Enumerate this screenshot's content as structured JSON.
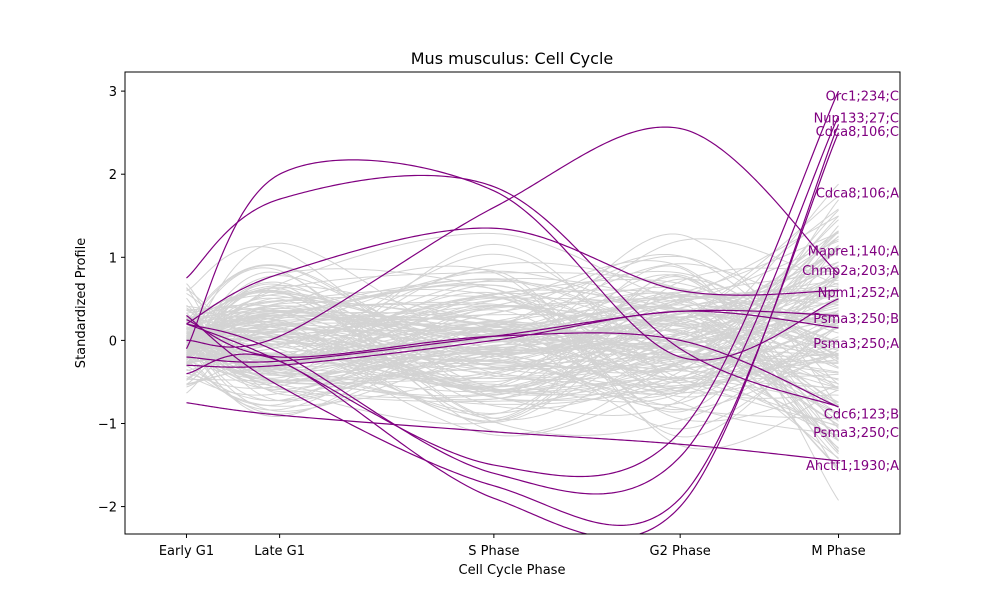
{
  "chart_data": {
    "type": "line",
    "title": "Mus musculus: Cell Cycle",
    "xlabel": "Cell Cycle Phase",
    "ylabel": "Standardized Profile",
    "categories": [
      "Early G1",
      "Late G1",
      "S Phase",
      "G2 Phase",
      "M Phase"
    ],
    "x": [
      0,
      1,
      3.3,
      5.3,
      7
    ],
    "xlim": [
      -0.66,
      7.66
    ],
    "ylim": [
      -2.33,
      3.23
    ],
    "yticks": [
      -2,
      -1,
      0,
      1,
      2,
      3
    ],
    "ytick_labels": [
      "−2",
      "−1",
      "0",
      "1",
      "2",
      "3"
    ],
    "grid": false,
    "background_profiles": {
      "color": "#d3d3d3",
      "count": 160,
      "description_range": [
        -2.0,
        2.0
      ]
    },
    "highlight_color": "#800080",
    "series": [
      {
        "name": "Orc1;234;C",
        "values": [
          0.2,
          -0.25,
          -1.5,
          -1.1,
          3.0
        ]
      },
      {
        "name": "Nup133;27;C",
        "values": [
          0.2,
          -0.15,
          -1.6,
          -1.4,
          2.7
        ]
      },
      {
        "name": "Cdca8;106;C",
        "values": [
          0.3,
          -0.55,
          -1.75,
          -1.9,
          2.5
        ]
      },
      {
        "name": "Cdca8;106;A",
        "values": [
          -0.4,
          -0.25,
          -1.9,
          -2.0,
          2.6
        ]
      },
      {
        "name": "Mapre1;140;A",
        "values": [
          0.2,
          0.8,
          1.35,
          0.6,
          0.6
        ]
      },
      {
        "name": "Chmp2a;203;A",
        "values": [
          0.0,
          0.05,
          1.6,
          2.55,
          0.8
        ]
      },
      {
        "name": "Npm1;252;A",
        "values": [
          -0.1,
          2.0,
          1.8,
          -0.2,
          0.5
        ]
      },
      {
        "name": "Psma3;250;B",
        "values": [
          -0.3,
          -0.3,
          0.0,
          0.35,
          0.15
        ]
      },
      {
        "name": "Psma3;250;A",
        "values": [
          -0.2,
          -0.25,
          0.05,
          0.35,
          0.3
        ]
      },
      {
        "name": "Cdc6;123;B",
        "values": [
          0.75,
          1.7,
          1.85,
          -0.1,
          -0.8
        ]
      },
      {
        "name": "Psma3;250;C",
        "values": [
          0.25,
          -0.2,
          0.05,
          0.0,
          -0.8
        ]
      },
      {
        "name": "Ahctf1;1930;A",
        "values": [
          -0.75,
          -0.9,
          -1.1,
          -1.25,
          -1.45
        ]
      }
    ],
    "label_values": [
      2.95,
      2.68,
      2.52,
      1.78,
      1.08,
      0.85,
      0.58,
      0.27,
      -0.03,
      -0.88,
      -1.1,
      -1.5
    ]
  }
}
